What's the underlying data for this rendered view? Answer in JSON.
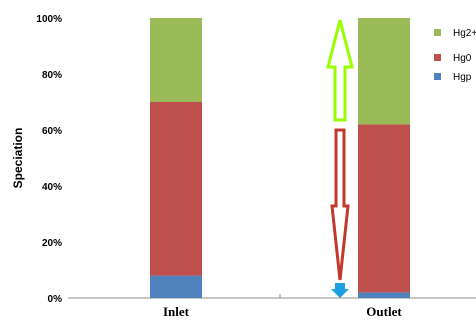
{
  "chart_data": {
    "type": "bar",
    "stacked": true,
    "title": "",
    "xlabel": "",
    "ylabel": "Speciation",
    "ylim": [
      0,
      100
    ],
    "yticks": [
      "0%",
      "20%",
      "40%",
      "60%",
      "80%",
      "100%"
    ],
    "categories": [
      "Inlet",
      "Outlet"
    ],
    "series": [
      {
        "name": "Hgp",
        "values": [
          8,
          2
        ],
        "color": "#4f81bd"
      },
      {
        "name": "Hg0",
        "values": [
          62,
          60
        ],
        "color": "#c0504d"
      },
      {
        "name": "Hg2+",
        "values": [
          30,
          38
        ],
        "color": "#9bbb59"
      }
    ],
    "legend": "right, partially cut off",
    "legend_labels_visible": [
      "Hg2+",
      "Hg0",
      "Hgp"
    ],
    "grid": false,
    "annotations": {
      "arrow_up_color": "#99ff00",
      "arrow_down_color": "#c0392b",
      "arrow_tip_color": "#1ba1e2"
    }
  }
}
